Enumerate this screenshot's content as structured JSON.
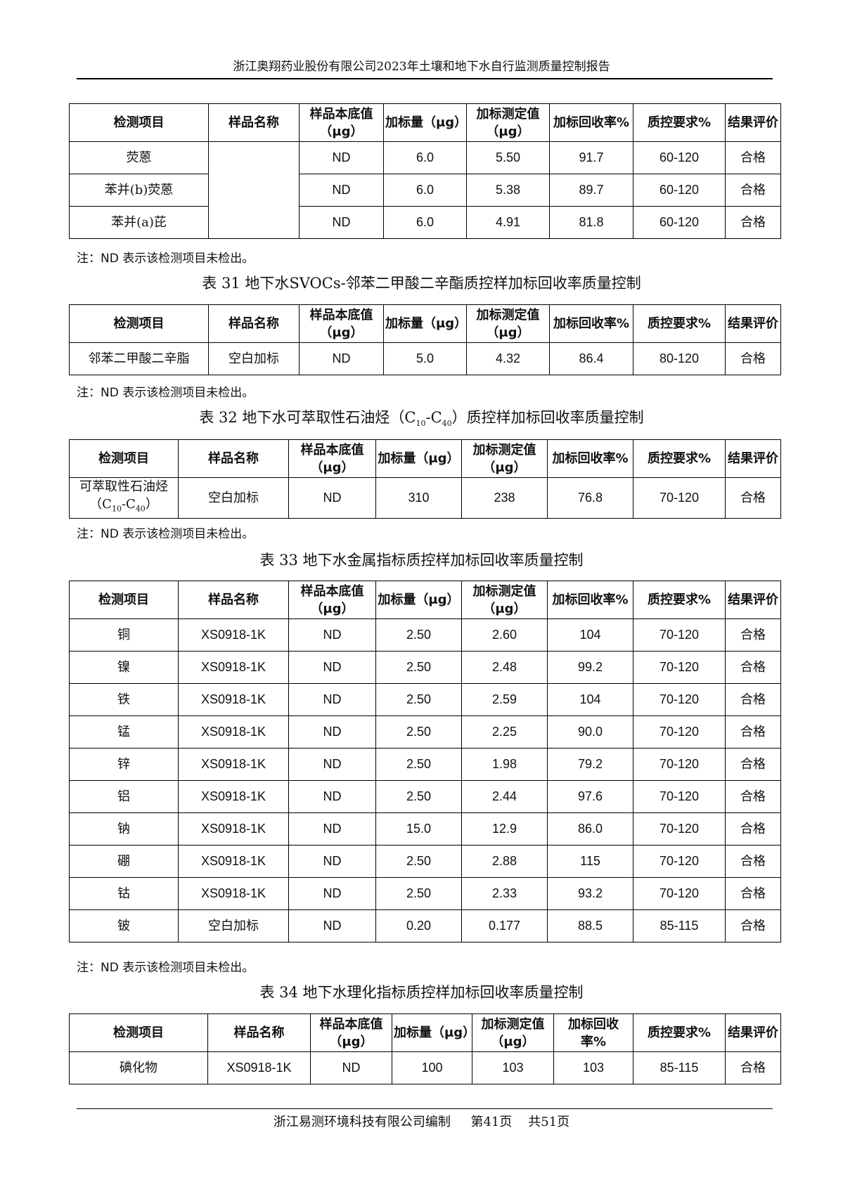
{
  "page_header": "浙江奥翔药业股份有限公司2023年土壤和地下水自行监测质量控制报告",
  "columns": [
    "检测项目",
    "样品名称",
    "样品本底值（μg）",
    "加标量（μg）",
    "加标测定值（μg）",
    "加标回收率%",
    "质控要求%",
    "结果评价"
  ],
  "note": "注：ND 表示该检测项目未检出。",
  "tables": [
    {
      "caption": "",
      "merged_sample": "",
      "rows": [
        [
          "荧蒽",
          "",
          "ND",
          "6.0",
          "5.50",
          "91.7",
          "60-120",
          "合格"
        ],
        [
          "苯并(b)荧蒽",
          "",
          "ND",
          "6.0",
          "5.38",
          "89.7",
          "60-120",
          "合格"
        ],
        [
          "苯并(a)芘",
          "",
          "ND",
          "6.0",
          "4.91",
          "81.8",
          "60-120",
          "合格"
        ]
      ]
    },
    {
      "caption": "表 31 地下水SVOCs-邻苯二甲酸二辛酯质控样加标回收率质量控制",
      "rows": [
        [
          "邻苯二甲酸二辛脂",
          "空白加标",
          "ND",
          "5.0",
          "4.32",
          "86.4",
          "80-120",
          "合格"
        ]
      ]
    },
    {
      "caption_parts": [
        "表 32 地下水可萃取性石油烃（C",
        "10",
        "-C",
        "40",
        "）质控样加标回收率质量控制"
      ],
      "rows": [
        [
          "",
          "空白加标",
          "ND",
          "310",
          "238",
          "76.8",
          "70-120",
          "合格"
        ]
      ],
      "item_parts": [
        "可萃取性石油烃（C",
        "10",
        "-C",
        "40",
        "）"
      ]
    },
    {
      "caption": "表 33 地下水金属指标质控样加标回收率质量控制",
      "rows": [
        [
          "铜",
          "XS0918-1K",
          "ND",
          "2.50",
          "2.60",
          "104",
          "70-120",
          "合格"
        ],
        [
          "镍",
          "XS0918-1K",
          "ND",
          "2.50",
          "2.48",
          "99.2",
          "70-120",
          "合格"
        ],
        [
          "铁",
          "XS0918-1K",
          "ND",
          "2.50",
          "2.59",
          "104",
          "70-120",
          "合格"
        ],
        [
          "锰",
          "XS0918-1K",
          "ND",
          "2.50",
          "2.25",
          "90.0",
          "70-120",
          "合格"
        ],
        [
          "锌",
          "XS0918-1K",
          "ND",
          "2.50",
          "1.98",
          "79.2",
          "70-120",
          "合格"
        ],
        [
          "铝",
          "XS0918-1K",
          "ND",
          "2.50",
          "2.44",
          "97.6",
          "70-120",
          "合格"
        ],
        [
          "钠",
          "XS0918-1K",
          "ND",
          "15.0",
          "12.9",
          "86.0",
          "70-120",
          "合格"
        ],
        [
          "硼",
          "XS0918-1K",
          "ND",
          "2.50",
          "2.88",
          "115",
          "70-120",
          "合格"
        ],
        [
          "钴",
          "XS0918-1K",
          "ND",
          "2.50",
          "2.33",
          "93.2",
          "70-120",
          "合格"
        ],
        [
          "铍",
          "空白加标",
          "ND",
          "0.20",
          "0.177",
          "88.5",
          "85-115",
          "合格"
        ]
      ]
    },
    {
      "caption": "表 34 地下水理化指标质控样加标回收率质量控制",
      "rows": [
        [
          "碘化物",
          "XS0918-1K",
          "ND",
          "100",
          "103",
          "103",
          "85-115",
          "合格"
        ]
      ]
    }
  ],
  "footer": {
    "company": "浙江易测环境科技有限公司编制",
    "page": "第41页",
    "total": "共51页"
  }
}
